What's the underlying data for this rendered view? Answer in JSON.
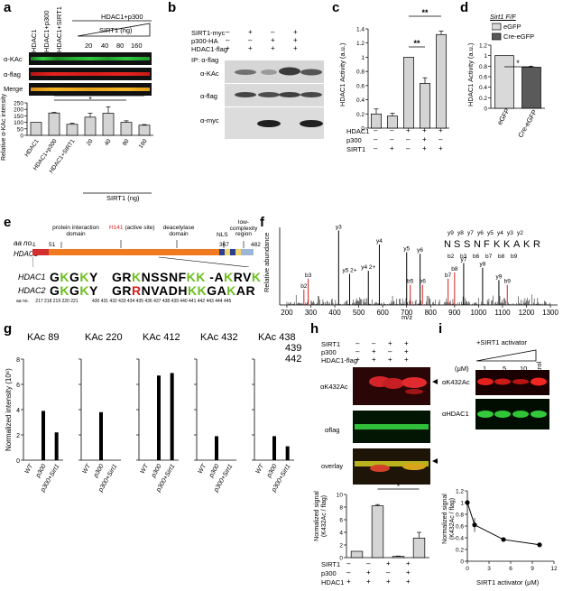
{
  "panels": {
    "a": {
      "letter": "a",
      "lane_labels": [
        "HDAC1",
        "HDAC1+p300",
        "HDAC1+SIRT1"
      ],
      "header_top": "HDAC1+p300",
      "header_sub": "SIRT1 (ng)",
      "ng_values": [
        "20",
        "40",
        "80",
        "160"
      ],
      "blot_labels": [
        "α-KAc",
        "α-flag",
        "Merge"
      ],
      "ylabel": "Relative α-KAc intensity",
      "sig": [
        "*",
        "*"
      ],
      "xgroup": "SIRT1 (ng)",
      "colors": {
        "green": "#22c23a",
        "red": "#e8231f",
        "merge": "#f0a020"
      }
    },
    "b": {
      "letter": "b",
      "rows": [
        {
          "label": "SIRT1-myc",
          "marks": [
            "–",
            "+",
            "–",
            "+"
          ]
        },
        {
          "label": "p300-HA",
          "marks": [
            "–",
            "–",
            "+",
            "+"
          ]
        },
        {
          "label": "HDAC1-flag",
          "marks": [
            "+",
            "+",
            "+",
            "+"
          ]
        }
      ],
      "ip_label": "IP: α-flag",
      "blot_labels": [
        "α-KAc",
        "α-flag",
        "α-myc"
      ]
    },
    "c": {
      "letter": "c",
      "rows": [
        {
          "label": "HDAC1",
          "marks": [
            "–",
            "–",
            "+",
            "+",
            "+"
          ]
        },
        {
          "label": "p300",
          "marks": [
            "–",
            "–",
            "–",
            "+",
            "–"
          ]
        },
        {
          "label": "SIRT1",
          "marks": [
            "–",
            "+",
            "–",
            "+",
            "+"
          ]
        }
      ],
      "sig": [
        "**",
        "**"
      ]
    },
    "d": {
      "letter": "d",
      "title": "Sirt1 F/F",
      "legend": [
        "eGFP",
        "Cre-eGFP"
      ],
      "xlabels": [
        "eGFP",
        "Cre-eGFP"
      ],
      "sig": "*"
    },
    "e": {
      "letter": "e",
      "aa_no": "aa no.",
      "protein": "HDAC1",
      "domain_labels": [
        "protein interaction domain",
        "(active site)",
        "deacetylase domain",
        "NLS",
        "low-complexity region"
      ],
      "h141": "H141",
      "positions": [
        "1",
        "51",
        "367",
        "482"
      ],
      "seq_labels": [
        "HDAC1",
        "HDAC2"
      ],
      "hdac1_left": [
        {
          "t": "G",
          "c": "#000"
        },
        {
          "t": "K",
          "c": "#6cbf1e"
        },
        {
          "t": "G",
          "c": "#000"
        },
        {
          "t": "K",
          "c": "#6cbf1e"
        },
        {
          "t": "Y",
          "c": "#000"
        }
      ],
      "hdac1_right": [
        {
          "t": "G",
          "c": "#000"
        },
        {
          "t": "R",
          "c": "#000"
        },
        {
          "t": "K",
          "c": "#6cbf1e"
        },
        {
          "t": "N",
          "c": "#000"
        },
        {
          "t": "S",
          "c": "#000"
        },
        {
          "t": "S",
          "c": "#000"
        },
        {
          "t": "N",
          "c": "#000"
        },
        {
          "t": "F",
          "c": "#000"
        },
        {
          "t": "K",
          "c": "#6cbf1e"
        },
        {
          "t": "K",
          "c": "#6cbf1e"
        },
        {
          "t": " ",
          "c": "#000"
        },
        {
          "t": "-",
          "c": "#000"
        },
        {
          "t": "A",
          "c": "#000"
        },
        {
          "t": "K",
          "c": "#6cbf1e"
        },
        {
          "t": "R",
          "c": "#000"
        },
        {
          "t": "V",
          "c": "#000"
        },
        {
          "t": "K",
          "c": "#6cbf1e"
        }
      ],
      "hdac2_left": [
        {
          "t": "G",
          "c": "#000"
        },
        {
          "t": "K",
          "c": "#6cbf1e"
        },
        {
          "t": "G",
          "c": "#000"
        },
        {
          "t": "K",
          "c": "#6cbf1e"
        },
        {
          "t": "Y",
          "c": "#000"
        }
      ],
      "hdac2_right": [
        {
          "t": "G",
          "c": "#000"
        },
        {
          "t": "R",
          "c": "#000"
        },
        {
          "t": "R",
          "c": "#d62020"
        },
        {
          "t": "N",
          "c": "#000"
        },
        {
          "t": "V",
          "c": "#000"
        },
        {
          "t": "A",
          "c": "#000"
        },
        {
          "t": "D",
          "c": "#000"
        },
        {
          "t": "H",
          "c": "#000"
        },
        {
          "t": "K",
          "c": "#6cbf1e"
        },
        {
          "t": "K",
          "c": "#6cbf1e"
        },
        {
          "t": "G",
          "c": "#000"
        },
        {
          "t": "A",
          "c": "#000"
        },
        {
          "t": "K",
          "c": "#6cbf1e"
        },
        {
          "t": "A",
          "c": "#000"
        },
        {
          "t": "R",
          "c": "#000"
        }
      ],
      "aa_row_label": "aa no.",
      "aa_row_left": "217 218 219 220 221",
      "aa_row_right": "430 431 432 433 434 435 436 437 438 439 440 441 442 443 444 445"
    },
    "f": {
      "letter": "f",
      "ylabel": "Relative abundance",
      "xlabel": "m/z",
      "xticks": [
        "200",
        "300",
        "400",
        "500",
        "600",
        "700",
        "800",
        "900",
        "1000",
        "1100",
        "1200",
        "1300"
      ],
      "peptide": [
        "N",
        "S",
        "S",
        "N",
        "F",
        "K",
        "K",
        "A",
        "K",
        "R"
      ],
      "ions_top": [
        "y9",
        "y8",
        "y7",
        "y6",
        "y5",
        "y4",
        "y3",
        "y2"
      ],
      "ions_bottom": [
        "b2",
        "b3",
        "b6",
        "b7",
        "b8",
        "b9"
      ],
      "peak_labels": [
        "y3",
        "y4",
        "y5",
        "y6",
        "b3",
        "b2",
        "y5 2+",
        "y4 2+",
        "b5",
        "b6",
        "b7",
        "b8",
        "y7",
        "y8",
        "y9",
        "b9"
      ]
    },
    "g": {
      "letter": "g",
      "ylabel": "Normalized intensity (10⁶)",
      "subplots": [
        {
          "title": "KAc 89",
          "values": [
            0,
            0.39,
            0.22
          ]
        },
        {
          "title": "KAc 220",
          "values": [
            0,
            0.38,
            0
          ]
        },
        {
          "title": "KAc 412",
          "values": [
            0,
            0.67,
            0.69
          ]
        },
        {
          "title": "KAc 432",
          "values": [
            0,
            0.19,
            0
          ]
        },
        {
          "title": "KAc 438 439 442",
          "values": [
            0,
            0.19,
            0.11
          ]
        }
      ],
      "xlabels": [
        "WT",
        "p300",
        "p300+Sirt1"
      ]
    },
    "h": {
      "letter": "h",
      "rows": [
        {
          "label": "SIRT1",
          "marks": [
            "–",
            "–",
            "+",
            "+"
          ]
        },
        {
          "label": "p300",
          "marks": [
            "–",
            "+",
            "–",
            "+"
          ]
        },
        {
          "label": "HDAC1-flag",
          "marks": [
            "+",
            "+",
            "+",
            "+"
          ]
        }
      ],
      "blot_labels": [
        "αK432Ac",
        "αflag",
        "overlay"
      ],
      "bar_ylabel": "Normalized signal (K432Ac / flag)",
      "bottom_rows": [
        {
          "label": "SIRT1",
          "marks": [
            "–",
            "–",
            "+",
            "+"
          ]
        },
        {
          "label": "p300",
          "marks": [
            "–",
            "+",
            "–",
            "+"
          ]
        },
        {
          "label": "HDAC1",
          "marks": [
            "+",
            "+",
            "+",
            "+"
          ]
        }
      ],
      "sig": "*"
    },
    "i": {
      "letter": "i",
      "title": "+SIRT1 activator",
      "unit": "(μM)",
      "doses": [
        "1",
        "5",
        "10"
      ],
      "control": "Control",
      "blot_labels": [
        "αK432Ac",
        "αHDAC1"
      ],
      "xlabel": "SIRT1 activator (μM)",
      "ylabel": "Normalized signal (K432Ac / flag)"
    }
  },
  "chart_data": [
    {
      "type": "bar",
      "panel": "a",
      "categories": [
        "HDAC1",
        "HDAC1+p300",
        "HDAC1+SIRT1",
        "20",
        "40",
        "80",
        "160"
      ],
      "values": [
        100,
        172,
        85,
        140,
        170,
        100,
        78
      ],
      "errors": [
        0,
        5,
        8,
        30,
        50,
        12,
        5
      ],
      "ylabel": "Relative α-KAc intensity",
      "yticks": [
        0,
        50,
        100,
        150,
        200,
        250
      ],
      "ylim": [
        0,
        250
      ]
    },
    {
      "type": "bar",
      "panel": "c",
      "categories": [
        "1",
        "2",
        "3",
        "4",
        "5"
      ],
      "values": [
        0.2,
        0.17,
        1.0,
        0.63,
        1.32
      ],
      "errors": [
        0.07,
        0.04,
        0.0,
        0.08,
        0.05
      ],
      "ylabel": "HDAC1 Activity (a.u.)",
      "yticks": [
        0,
        0.2,
        0.4,
        0.6,
        0.8,
        1.0,
        1.2,
        1.4
      ],
      "ylim": [
        0,
        1.4
      ]
    },
    {
      "type": "bar",
      "panel": "d",
      "categories": [
        "eGFP",
        "Cre-eGFP"
      ],
      "values": [
        1.0,
        0.78
      ],
      "errors": [
        0,
        0.02
      ],
      "ylabel": "HDAC1 Activity (a.u.)",
      "yticks": [
        0,
        0.2,
        0.4,
        0.6,
        0.8,
        1.0,
        1.2
      ],
      "ylim": [
        0,
        1.2
      ]
    },
    {
      "type": "bar",
      "panel": "h",
      "categories": [
        "1",
        "2",
        "3",
        "4"
      ],
      "values": [
        1.0,
        8.2,
        0.2,
        3.1
      ],
      "errors": [
        0,
        0.2,
        0.05,
        0.9
      ],
      "ylabel": "Normalized signal (K432Ac / flag)",
      "yticks": [
        0,
        2,
        4,
        6,
        8,
        10
      ],
      "ylim": [
        0,
        10
      ]
    },
    {
      "type": "line",
      "panel": "i",
      "x": [
        0,
        1,
        5,
        10
      ],
      "y": [
        1.0,
        0.62,
        0.37,
        0.28
      ],
      "errors": [
        0.05,
        0.12,
        0.02,
        0.04
      ],
      "xlabel": "SIRT1 activator (μM)",
      "ylabel": "Normalized signal (K432Ac / flag)",
      "xticks": [
        0,
        3,
        6,
        9,
        12
      ],
      "yticks": [
        0,
        0.2,
        0.4,
        0.6,
        0.8,
        1.0,
        1.2
      ],
      "xlim": [
        0,
        12
      ],
      "ylim": [
        0,
        1.2
      ]
    }
  ]
}
